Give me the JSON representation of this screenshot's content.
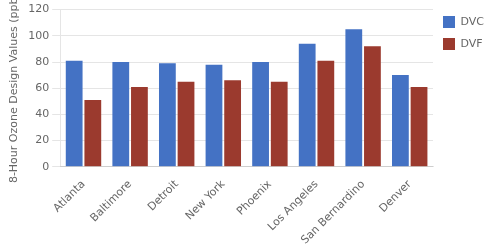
{
  "chart_data": {
    "type": "bar",
    "categories": [
      "Atlanta",
      "Baltimore",
      "Detroit",
      "New York",
      "Phoenix",
      "Los Angeles",
      "San Bernardino",
      "Denver"
    ],
    "series": [
      {
        "name": "DVC",
        "color": "#4472C4",
        "values": [
          81,
          80,
          79,
          78,
          80,
          94,
          105,
          70
        ]
      },
      {
        "name": "DVF",
        "color": "#9B3A2E",
        "values": [
          51,
          61,
          65,
          66,
          65,
          81,
          92,
          61
        ]
      }
    ],
    "ylabel": "8-Hour Ozone Design Values (ppb)",
    "ylim": [
      0,
      120
    ],
    "yticks": [
      0,
      20,
      40,
      60,
      80,
      100,
      120
    ],
    "grid": true,
    "legend": "right"
  }
}
